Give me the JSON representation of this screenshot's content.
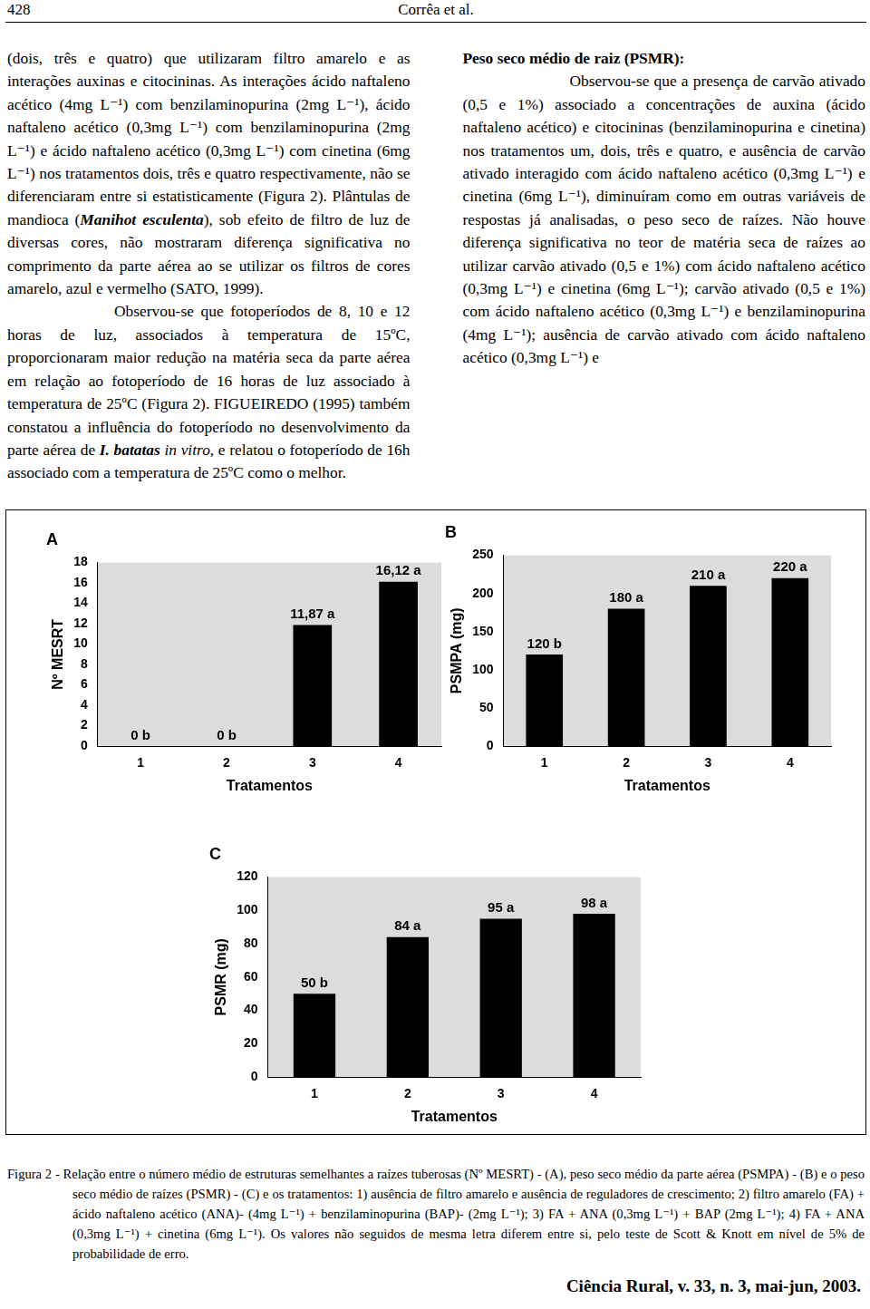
{
  "header": {
    "page": "428",
    "authors": "Corrêa et al."
  },
  "body": [
    {
      "runs": [
        "(dois, três e quatro) que utilizaram filtro amarelo e as interações auxinas e citocininas. As interações ácido naftaleno acético (4mg L⁻¹) com benzilaminopurina (2mg L⁻¹), ácido naftaleno acético (0,3mg L⁻¹) com benzilaminopurina (2mg L⁻¹) e ácido naftaleno acético (0,3mg L⁻¹) com cinetina (6mg L⁻¹) nos tratamentos dois, três e quatro respectivamente, não se diferenciaram entre si estatisticamente (Figura 2). Plântulas de mandioca (",
        {
          "text": "Manihot esculenta",
          "bold": true,
          "italic": true
        },
        "), sob efeito de filtro de luz de diversas cores, não mostraram diferença significativa no comprimento da parte aérea ao se utilizar os filtros de cores amarelo, azul e vermelho (SATO, 1999)."
      ]
    },
    {
      "runs": [
        "Observou-se que fotoperíodos de 8, 10 e 12 horas de luz, associados à temperatura de 15ºC, proporcionaram maior redução na matéria seca da parte aérea em relação ao fotoperíodo de 16 horas de luz associado à temperatura de 25ºC (Figura 2). FIGUEIREDO (1995) também constatou a influência do fotoperíodo no desenvolvimento da parte aérea de ",
        {
          "text": "I. batatas",
          "bold": true,
          "italic": true
        },
        " ",
        {
          "text": "in vitro",
          "italic": true
        },
        ", e relatou o fotoperíodo de 16h associado com a temperatura de 25ºC como o melhor."
      ]
    },
    {
      "runs": [
        {
          "text": "Peso seco médio de raiz (PSMR):",
          "bold": true
        }
      ]
    },
    {
      "runs": [
        "Observou-se que a presença de carvão ativado (0,5 e 1%) associado a concentrações de auxina (ácido naftaleno acético) e citocininas (benzilaminopurina e cinetina) nos tratamentos um, dois, três e quatro, e ausência de carvão ativado interagido com ácido naftaleno acético (0,3mg L⁻¹) e cinetina (6mg L⁻¹), diminuíram como em outras variáveis de respostas já analisadas, o peso seco de raízes. Não houve diferença significativa no teor de matéria seca de raízes ao utilizar carvão ativado (0,5 e 1%) com ácido naftaleno acético (0,3mg L⁻¹) e cinetina (6mg L⁻¹); carvão ativado (0,5 e 1%) com ácido naftaleno acético (0,3mg L⁻¹) e benzilaminopurina (4mg L⁻¹); ausência de carvão ativado com ácido naftaleno acético (0,3mg L⁻¹) e"
      ]
    }
  ],
  "chart_data": [
    {
      "type": "bar",
      "title": "A",
      "x_label": "Tratamentos",
      "y_label": "Nº MESRT",
      "categories": [
        "1",
        "2",
        "3",
        "4"
      ],
      "values": [
        0,
        0,
        11.87,
        16.12
      ],
      "value_labels": [
        "0 b",
        "0 b",
        "11,87 a",
        "16,12 a"
      ],
      "data_labels": true,
      "color": "#000000",
      "ylim": [
        0,
        18
      ],
      "yticks": [
        0,
        2,
        4,
        6,
        8,
        10,
        12,
        14,
        16,
        18
      ],
      "grid": false
    },
    {
      "type": "bar",
      "title": "B",
      "x_label": "Tratamentos",
      "y_label": "PSMPA (mg)",
      "categories": [
        "1",
        "2",
        "3",
        "4"
      ],
      "values": [
        120,
        180,
        210,
        220
      ],
      "value_labels": [
        "120 b",
        "180 a",
        "210 a",
        "220 a"
      ],
      "data_labels": true,
      "color": "#000000",
      "ylim": [
        0,
        250
      ],
      "yticks": [
        0,
        50,
        100,
        150,
        200,
        250
      ],
      "grid": false
    },
    {
      "type": "bar",
      "title": "C",
      "x_label": "Tratamentos",
      "y_label": "PSMR (mg)",
      "categories": [
        "1",
        "2",
        "3",
        "4"
      ],
      "values": [
        50,
        84,
        95,
        98
      ],
      "value_labels": [
        "50 b",
        "84 a",
        "95 a",
        "98 a"
      ],
      "data_labels": true,
      "color": "#000000",
      "ylim": [
        0,
        120
      ],
      "yticks": [
        0,
        20,
        40,
        60,
        80,
        100,
        120
      ],
      "grid": false
    }
  ],
  "caption": "Figura 2 - Relação entre o número médio de estruturas semelhantes a raízes tuberosas (Nº MESRT) - (A), peso seco médio da parte aérea (PSMPA) - (B) e o peso seco médio de raízes (PSMR) - (C) e os tratamentos: 1) ausência de filtro amarelo e ausência de reguladores de crescimento; 2) filtro amarelo (FA) + ácido naftaleno acético (ANA)- (4mg L⁻¹) + benzilaminopurina (BAP)- (2mg L⁻¹); 3) FA + ANA (0,3mg L⁻¹) + BAP (2mg L⁻¹); 4) FA + ANA (0,3mg L⁻¹) + cinetina (6mg L⁻¹). Os valores não seguidos de mesma letra diferem entre si, pelo teste de Scott & Knott em nível de 5% de probabilidade de erro.",
  "footer": "Ciência Rural, v. 33, n. 3, mai-jun, 2003."
}
